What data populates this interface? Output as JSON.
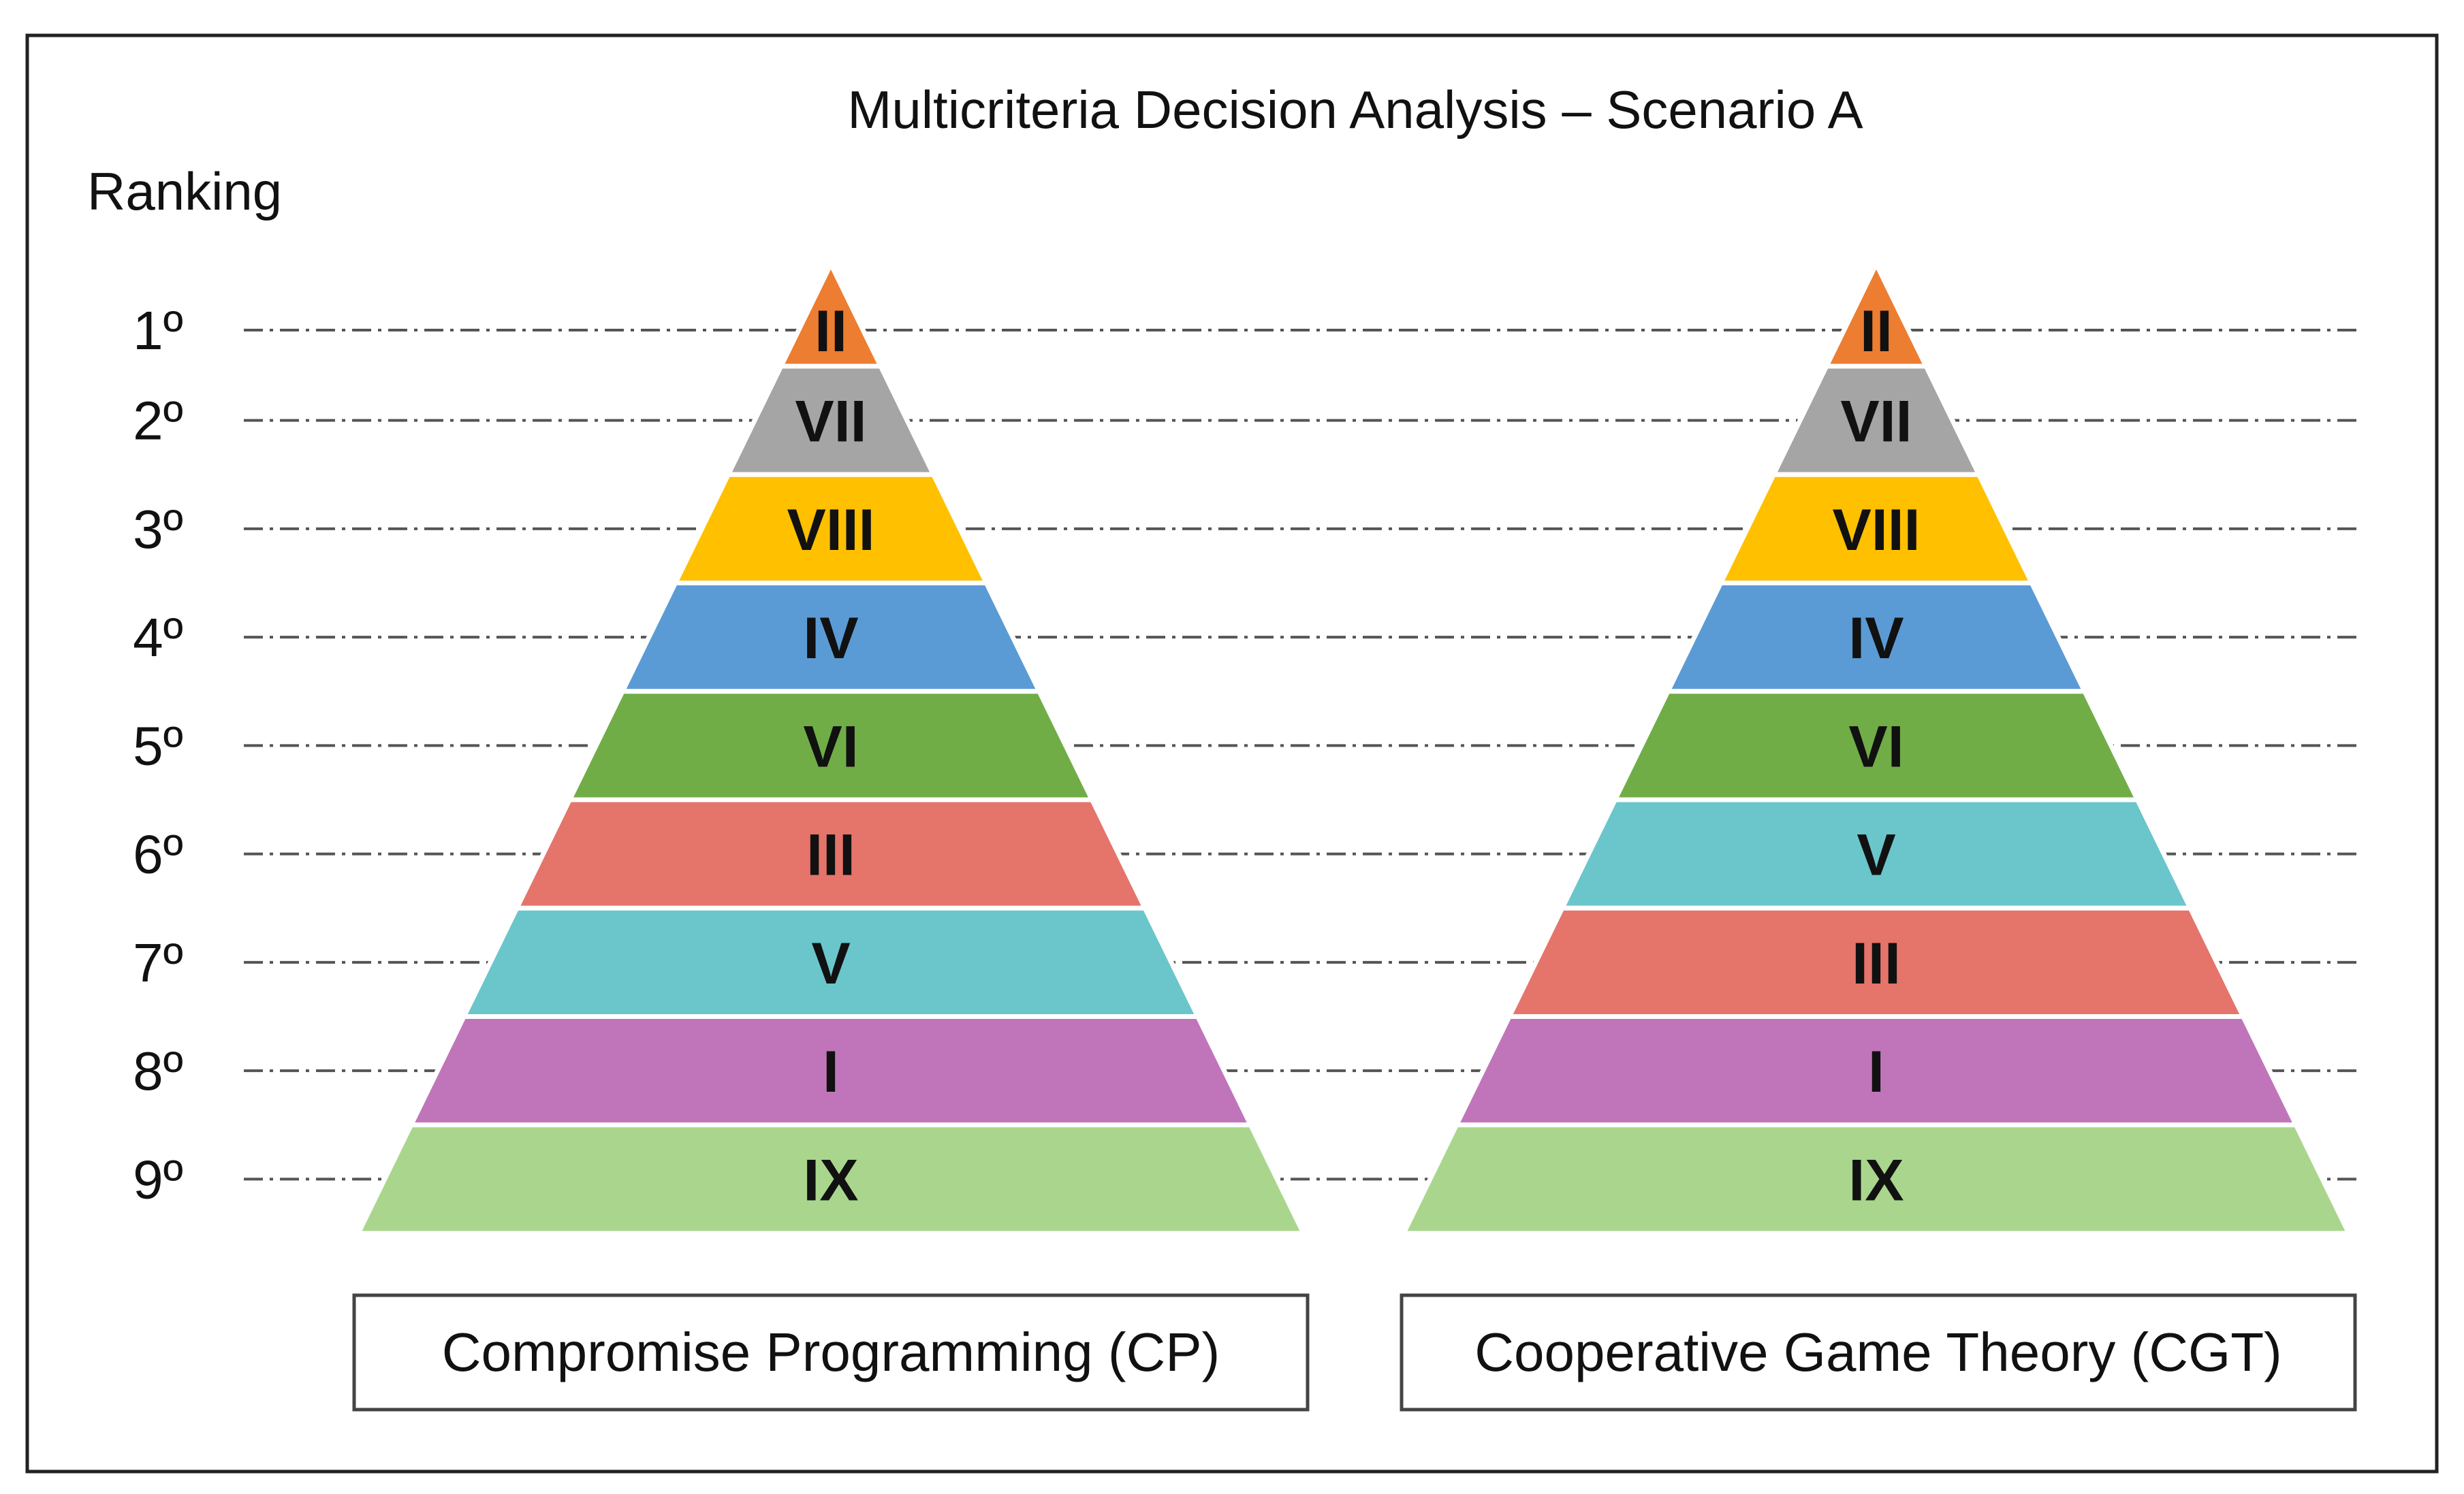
{
  "title": "Multicriteria Decision Analysis – Scenario A",
  "ranking_label": "Ranking",
  "ranks": [
    "1º",
    "2º",
    "3º",
    "4º",
    "5º",
    "6º",
    "7º",
    "8º",
    "9º"
  ],
  "colors": {
    "II": "#ED7D31",
    "VII": "#A5A5A5",
    "VIII": "#FFC000",
    "IV": "#5B9BD5",
    "VI": "#70AD47",
    "III": "#E5746A",
    "V": "#6AC6CB",
    "I": "#C075BA",
    "IX": "#A9D68C"
  },
  "pyramids": [
    {
      "method": "Compromise Programming (CP)",
      "order": [
        "II",
        "VII",
        "VIII",
        "IV",
        "VI",
        "III",
        "V",
        "I",
        "IX"
      ]
    },
    {
      "method": "Cooperative Game Theory (CGT)",
      "order": [
        "II",
        "VII",
        "VIII",
        "IV",
        "VI",
        "V",
        "III",
        "I",
        "IX"
      ]
    }
  ]
}
